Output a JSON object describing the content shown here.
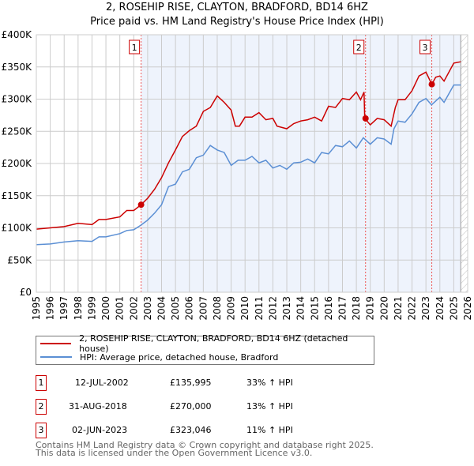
{
  "chart_data": {
    "type": "line",
    "title": "2, ROSEHIP RISE, CLAYTON, BRADFORD, BD14 6HZ",
    "subtitle": "Price paid vs. HM Land Registry's House Price Index (HPI)",
    "xlim": [
      1995,
      2026
    ],
    "ylim": [
      0,
      400000
    ],
    "x_ticks": [
      "1995",
      "1996",
      "1997",
      "1998",
      "1999",
      "2000",
      "2001",
      "2002",
      "2003",
      "2004",
      "2005",
      "2006",
      "2007",
      "2008",
      "2009",
      "2010",
      "2011",
      "2012",
      "2013",
      "2014",
      "2015",
      "2016",
      "2017",
      "2018",
      "2019",
      "2020",
      "2021",
      "2022",
      "2023",
      "2024",
      "2025",
      "2026"
    ],
    "y_ticks": [
      {
        "v": 0,
        "label": "£0"
      },
      {
        "v": 50000,
        "label": "£50K"
      },
      {
        "v": 100000,
        "label": "£100K"
      },
      {
        "v": 150000,
        "label": "£150K"
      },
      {
        "v": 200000,
        "label": "£200K"
      },
      {
        "v": 250000,
        "label": "£250K"
      },
      {
        "v": 300000,
        "label": "£300K"
      },
      {
        "v": 350000,
        "label": "£350K"
      },
      {
        "v": 400000,
        "label": "£400K"
      }
    ],
    "grid": true,
    "series": [
      {
        "name": "2, ROSEHIP RISE, CLAYTON, BRADFORD, BD14 6HZ (detached house)",
        "color": "#cc0000",
        "x": [
          1995,
          1996,
          1997,
          1998,
          1999,
          1999.5,
          2000,
          2001,
          2001.5,
          2002,
          2002.53,
          2003,
          2003.5,
          2004,
          2004.5,
          2005,
          2005.5,
          2006,
          2006.5,
          2007,
          2007.5,
          2008,
          2008.5,
          2009,
          2009.3,
          2009.6,
          2010,
          2010.5,
          2011,
          2011.5,
          2012,
          2012.3,
          2013,
          2013.5,
          2014,
          2014.5,
          2015,
          2015.5,
          2016,
          2016.5,
          2017,
          2017.5,
          2018,
          2018.3,
          2018.55,
          2018.6,
          2019,
          2019.5,
          2020,
          2020.5,
          2020.8,
          2021,
          2021.5,
          2022,
          2022.5,
          2023,
          2023.42,
          2023.7,
          2024,
          2024.3,
          2025,
          2025.5
        ],
        "y": [
          98000,
          100000,
          102000,
          107000,
          105000,
          113000,
          113000,
          117000,
          127000,
          127000,
          136000,
          146000,
          160000,
          178000,
          201000,
          221000,
          242000,
          251000,
          258000,
          281000,
          287000,
          305000,
          295000,
          283000,
          258000,
          258000,
          272000,
          272000,
          279000,
          268000,
          270000,
          258000,
          254000,
          262000,
          266000,
          268000,
          272000,
          266000,
          289000,
          287000,
          301000,
          299000,
          311000,
          299000,
          311000,
          270000,
          260000,
          270000,
          268000,
          258000,
          287000,
          299000,
          299000,
          313000,
          336000,
          342000,
          323000,
          334000,
          336000,
          328000,
          356000,
          358000
        ]
      },
      {
        "name": "HPI: Average price, detached house, Bradford",
        "color": "#5b8fd4",
        "x": [
          1995,
          1996,
          1997,
          1998,
          1999,
          1999.5,
          2000,
          2001,
          2001.5,
          2002,
          2002.5,
          2003,
          2003.5,
          2004,
          2004.5,
          2005,
          2005.5,
          2006,
          2006.5,
          2007,
          2007.5,
          2008,
          2008.5,
          2009,
          2009.5,
          2010,
          2010.5,
          2011,
          2011.5,
          2012,
          2012.5,
          2013,
          2013.5,
          2014,
          2014.5,
          2015,
          2015.5,
          2016,
          2016.5,
          2017,
          2017.5,
          2018,
          2018.5,
          2019,
          2019.5,
          2020,
          2020.5,
          2020.7,
          2021,
          2021.5,
          2022,
          2022.5,
          2023,
          2023.4,
          2023.7,
          2024,
          2024.3,
          2025,
          2025.5
        ],
        "y": [
          74000,
          75000,
          78000,
          80000,
          79000,
          86000,
          86000,
          91000,
          96000,
          97000,
          104000,
          112000,
          123000,
          136000,
          164000,
          168000,
          187000,
          191000,
          209000,
          213000,
          228000,
          221000,
          217000,
          197000,
          205000,
          205000,
          211000,
          201000,
          205000,
          193000,
          197000,
          191000,
          201000,
          202000,
          207000,
          201000,
          217000,
          215000,
          228000,
          226000,
          235000,
          224000,
          240000,
          230000,
          240000,
          238000,
          230000,
          254000,
          266000,
          264000,
          277000,
          295000,
          301000,
          291000,
          297000,
          303000,
          295000,
          322000,
          322000
        ]
      }
    ],
    "sales": [
      {
        "n": "1",
        "x": 2002.53,
        "y": 135995
      },
      {
        "n": "2",
        "x": 2018.66,
        "y": 270000
      },
      {
        "n": "3",
        "x": 2023.42,
        "y": 323046
      }
    ],
    "shaded_from": 2002.53,
    "hatched_from": 2025.5,
    "legend_placement": "below"
  },
  "table": [
    {
      "n": "1",
      "date": "12-JUL-2002",
      "price": "£135,995",
      "hpi": "33% ↑ HPI"
    },
    {
      "n": "2",
      "date": "31-AUG-2018",
      "price": "£270,000",
      "hpi": "13% ↑ HPI"
    },
    {
      "n": "3",
      "date": "02-JUN-2023",
      "price": "£323,046",
      "hpi": "11% ↑ HPI"
    }
  ],
  "footer": {
    "line1": "Contains HM Land Registry data © Crown copyright and database right 2025.",
    "line2": "This data is licensed under the Open Government Licence v3.0."
  }
}
